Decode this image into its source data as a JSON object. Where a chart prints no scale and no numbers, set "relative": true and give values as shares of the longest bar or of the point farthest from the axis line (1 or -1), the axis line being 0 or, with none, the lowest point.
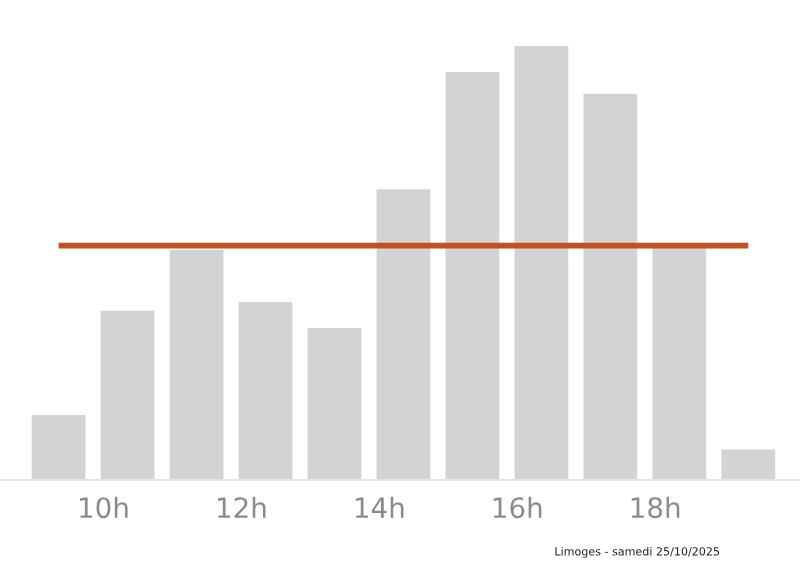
{
  "chart_data": {
    "type": "bar",
    "relative": true,
    "x": [
      9.35,
      10.35,
      11.35,
      12.35,
      13.35,
      14.35,
      15.35,
      16.35,
      17.35,
      18.35,
      19.35
    ],
    "values": [
      0.15,
      0.39,
      0.53,
      0.41,
      0.35,
      0.67,
      0.94,
      1,
      0.89,
      0.54,
      0.07
    ],
    "color": "#d3d3d5",
    "xlim": [
      8.5,
      20.1
    ],
    "xticks": [
      {
        "value": 10,
        "label": "10h"
      },
      {
        "value": 12,
        "label": "12h"
      },
      {
        "value": 14,
        "label": "14h"
      },
      {
        "value": 16,
        "label": "16h"
      },
      {
        "value": 18,
        "label": "18h"
      }
    ],
    "ref_lines": [
      {
        "axis": "y",
        "value": 0.54,
        "color": "#c0501f"
      }
    ],
    "annotations": [
      "Limoges - samedi 25/10/2025"
    ],
    "grid": false
  }
}
